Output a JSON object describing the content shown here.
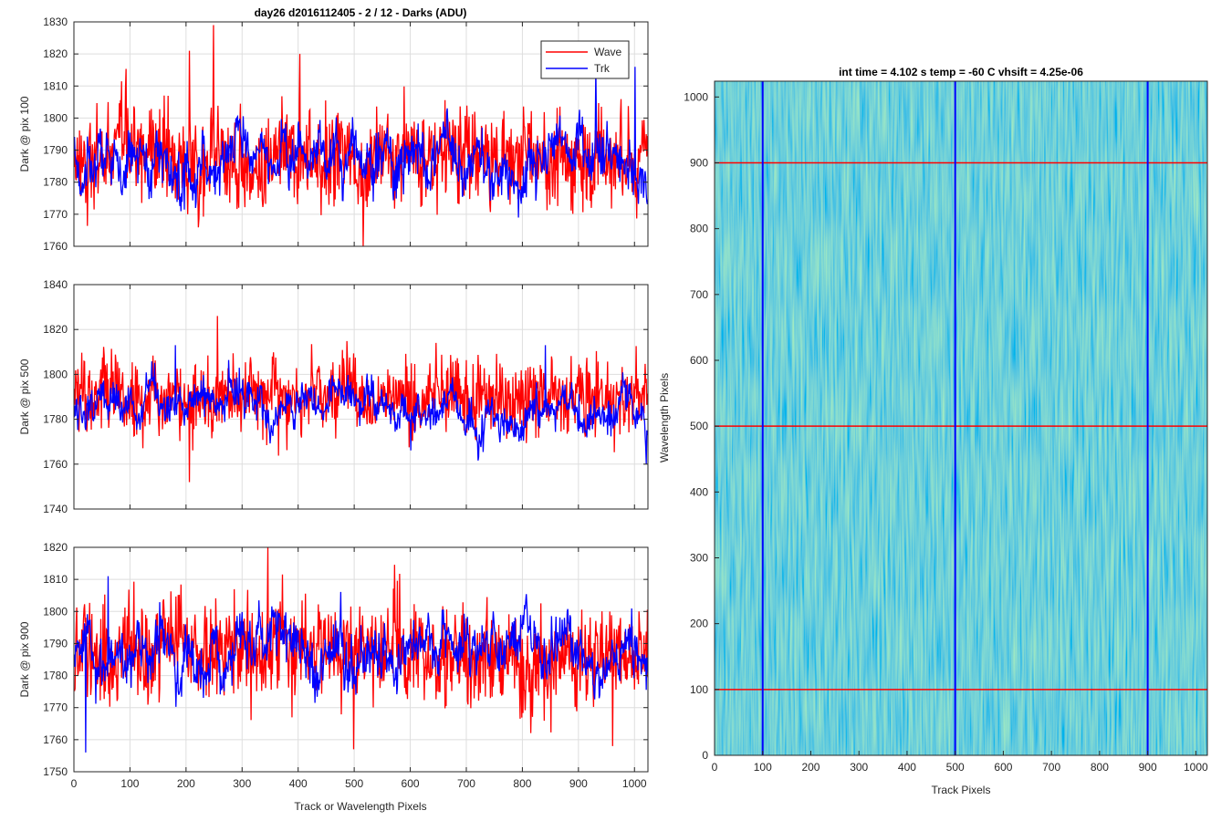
{
  "figure_title": "day26 d2016112405 - 2 / 12 - Darks (ADU)",
  "shared_xlabel": "Track or Wavelength Pixels",
  "colors": {
    "wave": "#ff0000",
    "trk": "#0000ff",
    "grid": "#dedede",
    "axis": "#262626"
  },
  "chart_data": [
    {
      "type": "line",
      "ylabel": "Dark @ pix 100",
      "xlim": [
        0,
        1024
      ],
      "ylim": [
        1760,
        1830
      ],
      "xticks": [
        0,
        100,
        200,
        300,
        400,
        500,
        600,
        700,
        800,
        900,
        1000
      ],
      "yticks": [
        1760,
        1770,
        1780,
        1790,
        1800,
        1810,
        1820,
        1830
      ],
      "grid": true,
      "legend": {
        "placement": "top-right",
        "entries": [
          "Wave",
          "Trk"
        ]
      },
      "series": [
        {
          "name": "Wave",
          "color": "#ff0000",
          "approx_mean": 1787,
          "approx_std": 8,
          "points": 1024,
          "peaks": [
            {
              "x": 248,
              "y": 1829
            },
            {
              "x": 402,
              "y": 1820
            },
            {
              "x": 205,
              "y": 1821
            }
          ]
        },
        {
          "name": "Trk",
          "color": "#0000ff",
          "approx_mean": 1786,
          "approx_std": 7,
          "points": 1024,
          "peaks": [
            {
              "x": 930,
              "y": 1816
            },
            {
              "x": 1000,
              "y": 1816
            }
          ]
        }
      ]
    },
    {
      "type": "line",
      "ylabel": "Dark @ pix 500",
      "xlim": [
        0,
        1024
      ],
      "ylim": [
        1740,
        1840
      ],
      "xticks": [
        0,
        100,
        200,
        300,
        400,
        500,
        600,
        700,
        800,
        900,
        1000
      ],
      "yticks": [
        1740,
        1760,
        1780,
        1800,
        1820,
        1840
      ],
      "grid": true,
      "series": [
        {
          "name": "Wave",
          "color": "#ff0000",
          "approx_mean": 1790,
          "approx_std": 9,
          "points": 1024,
          "peaks": [
            {
              "x": 255,
              "y": 1826
            },
            {
              "x": 205,
              "y": 1752
            }
          ]
        },
        {
          "name": "Trk",
          "color": "#0000ff",
          "approx_mean": 1786,
          "approx_std": 7,
          "points": 1024,
          "peaks": [
            {
              "x": 180,
              "y": 1813
            },
            {
              "x": 840,
              "y": 1813
            },
            {
              "x": 1020,
              "y": 1760
            }
          ]
        }
      ]
    },
    {
      "type": "line",
      "ylabel": "Dark @ pix 900",
      "xlabel": "Track or Wavelength Pixels",
      "xlim": [
        0,
        1024
      ],
      "ylim": [
        1750,
        1820
      ],
      "xticks": [
        0,
        100,
        200,
        300,
        400,
        500,
        600,
        700,
        800,
        900,
        1000
      ],
      "yticks": [
        1750,
        1760,
        1770,
        1780,
        1790,
        1800,
        1810,
        1820
      ],
      "grid": true,
      "series": [
        {
          "name": "Wave",
          "color": "#ff0000",
          "approx_mean": 1787,
          "approx_std": 8,
          "points": 1024,
          "peaks": [
            {
              "x": 345,
              "y": 1820
            },
            {
              "x": 498,
              "y": 1757
            },
            {
              "x": 960,
              "y": 1758
            }
          ]
        },
        {
          "name": "Trk",
          "color": "#0000ff",
          "approx_mean": 1786,
          "approx_std": 7,
          "points": 1024,
          "peaks": [
            {
              "x": 60,
              "y": 1811
            },
            {
              "x": 20,
              "y": 1756
            }
          ]
        }
      ]
    },
    {
      "type": "heatmap",
      "title": "int time = 4.102 s   temp = -60 C   vhsift = 4.25e-06",
      "xlabel": "Track Pixels",
      "ylabel": "Wavelength Pixels",
      "xlim": [
        0,
        1024
      ],
      "ylim": [
        0,
        1024
      ],
      "xticks": [
        0,
        100,
        200,
        300,
        400,
        500,
        600,
        700,
        800,
        900,
        1000
      ],
      "yticks": [
        0,
        100,
        200,
        300,
        400,
        500,
        600,
        700,
        800,
        900,
        1000
      ],
      "colormap": "parula",
      "vertical_markers": {
        "x": [
          100,
          500,
          900
        ],
        "color": "#0000ff"
      },
      "horizontal_markers": {
        "y": [
          100,
          500,
          900
        ],
        "color": "#ff0000"
      }
    }
  ]
}
